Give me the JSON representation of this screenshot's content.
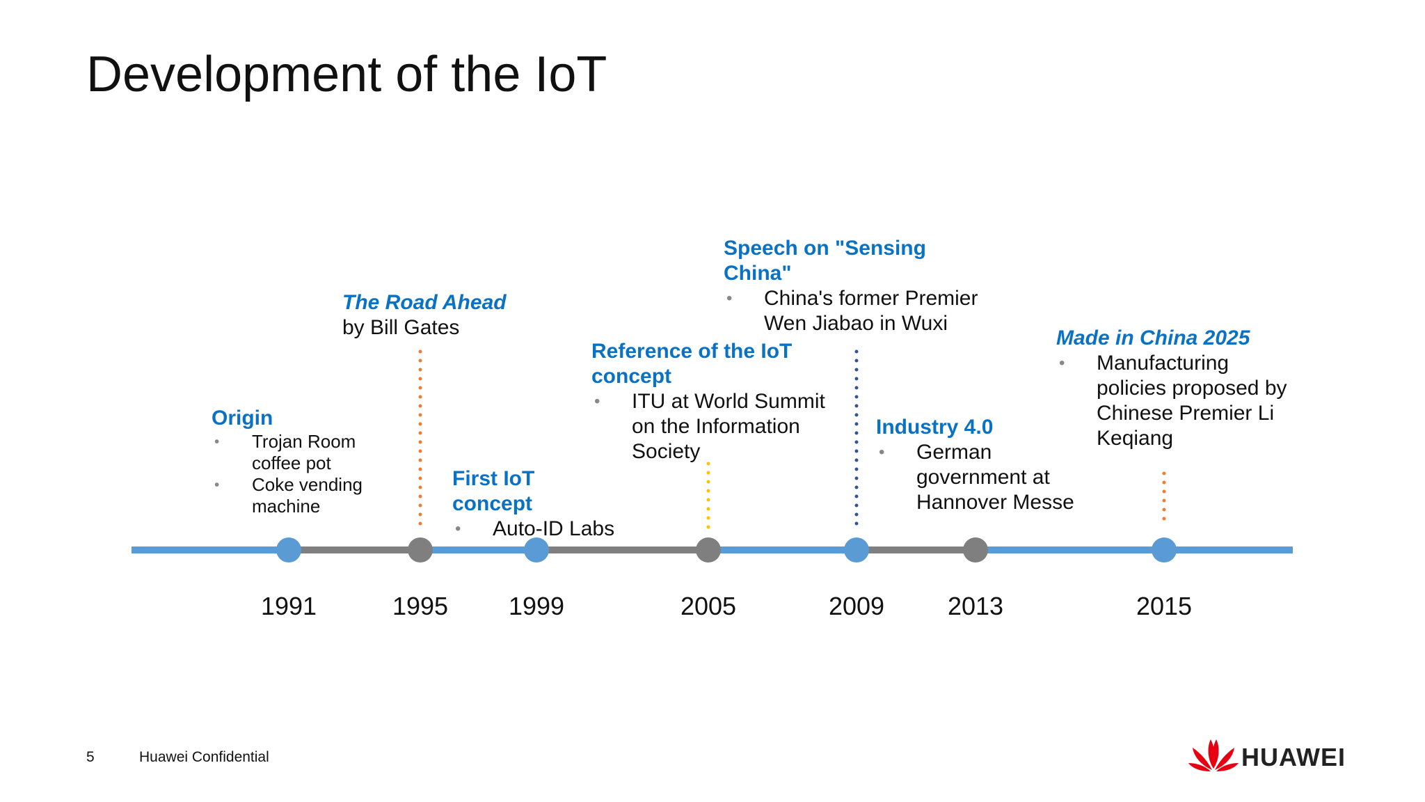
{
  "title": "Development of the IoT",
  "events": [
    {
      "year": "1991",
      "heading": "Origin",
      "bullets": [
        "Trojan Room coffee pot",
        "Coke vending machine"
      ]
    },
    {
      "year": "1995",
      "heading": "The Road Ahead",
      "sub": "by Bill Gates"
    },
    {
      "year": "1999",
      "heading": "First IoT concept",
      "bullets": [
        "Auto-ID Labs"
      ]
    },
    {
      "year": "2005",
      "heading": "Reference of the IoT concept",
      "bullets": [
        "ITU at World Summit on the Information Society"
      ]
    },
    {
      "year": "2009",
      "heading": "Speech on \"Sensing China\"",
      "bullets": [
        "China's former Premier Wen Jiabao in Wuxi"
      ]
    },
    {
      "year": "2013",
      "heading": "Industry 4.0",
      "bullets": [
        "German government at Hannover Messe"
      ]
    },
    {
      "year": "2015",
      "heading": "Made in China 2025",
      "bullets": [
        "Manufacturing policies proposed by Chinese Premier Li Keqiang"
      ]
    }
  ],
  "footer": {
    "page": "5",
    "confidential": "Huawei Confidential",
    "logo": "HUAWEI"
  }
}
